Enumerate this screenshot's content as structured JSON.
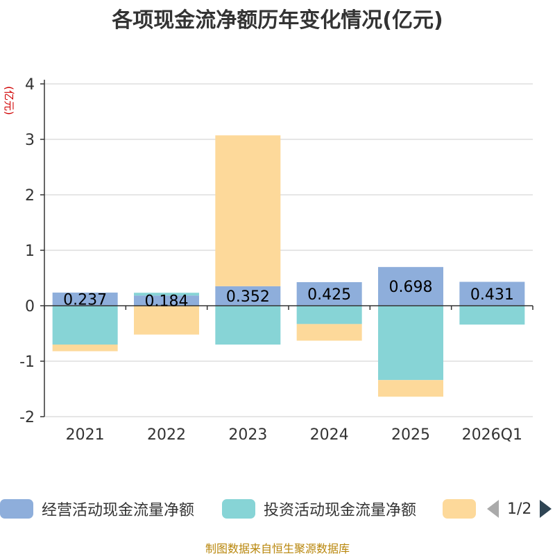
{
  "chart_data": {
    "type": "bar",
    "stacked": true,
    "title": "各项现金流净额历年变化情况(亿元)",
    "ylabel": "(亿元)",
    "xlabel": "",
    "ylim": [
      -2,
      4
    ],
    "yticks": [
      -2,
      -1,
      0,
      1,
      2,
      3,
      4
    ],
    "categories": [
      "2021",
      "2022",
      "2023",
      "2024",
      "2025",
      "2026Q1"
    ],
    "series": [
      {
        "name": "经营活动现金流量净额",
        "color": "#8eaedb",
        "values": [
          0.237,
          0.184,
          0.352,
          0.425,
          0.698,
          0.431
        ],
        "labels": [
          "0.237",
          "0.184",
          "0.352",
          "0.425",
          "0.698",
          "0.431"
        ]
      },
      {
        "name": "投资活动现金流量净额",
        "color": "#87d4d6",
        "values": [
          -0.7,
          0.05,
          -0.7,
          -0.33,
          -1.34,
          -0.34
        ]
      },
      {
        "name": "",
        "color": "#fdd99a",
        "values": [
          -0.12,
          -0.52,
          2.72,
          -0.3,
          -0.3,
          0
        ]
      }
    ]
  },
  "legend": {
    "items": [
      {
        "name": "经营活动现金流量净额",
        "color": "#8eaedb"
      },
      {
        "name": "投资活动现金流量净额",
        "color": "#87d4d6"
      },
      {
        "name": "",
        "color": "#fdd99a"
      }
    ],
    "page": "1/2"
  },
  "source": "制图数据来自恒生聚源数据库"
}
